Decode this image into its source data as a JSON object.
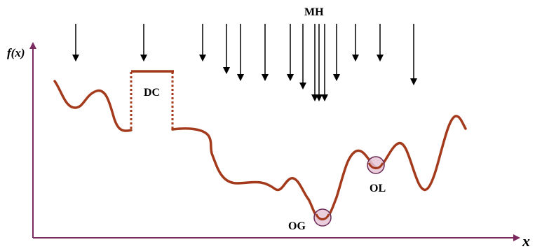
{
  "diagram": {
    "y_axis_label": "f(x)",
    "x_axis_label": "x",
    "labels": {
      "mh": "MH",
      "dc": "DC",
      "og": "OG",
      "ol": "OL"
    },
    "colors": {
      "axis": "#7a2a5e",
      "curve": "#a33a1c",
      "arrow": "#000000",
      "marker_fill": "#e6c6d6",
      "marker_stroke": "#6a2a55"
    },
    "arrow_count": 16
  }
}
